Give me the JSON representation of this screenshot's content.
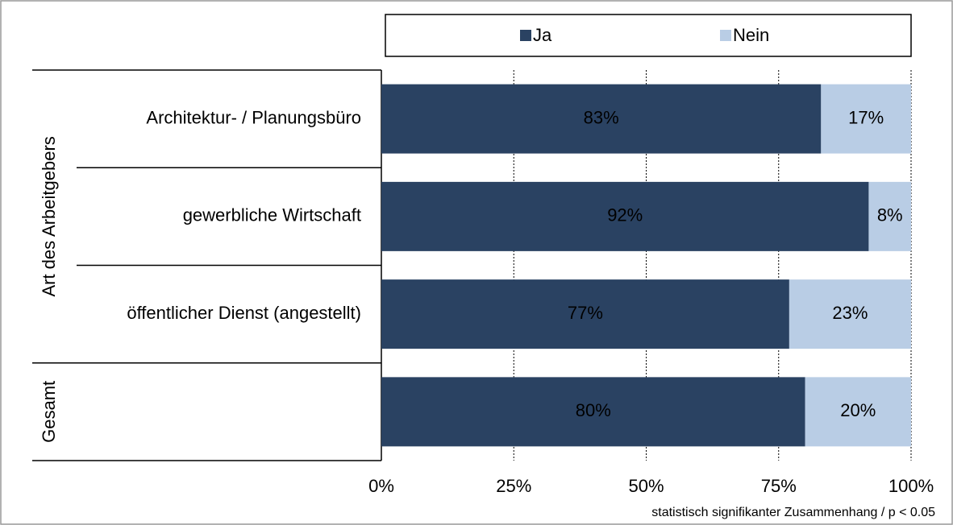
{
  "chart_data": {
    "type": "stacked_barh",
    "categories": [
      "Architektur- / Planungsbüro",
      "gewerbliche Wirtschaft",
      "öffentlicher Dienst (angestellt)",
      null
    ],
    "groups": [
      "Art des Arbeitgebers",
      "Gesamt"
    ],
    "series": [
      {
        "name": "Ja",
        "color": "#2a4262",
        "values": [
          83,
          92,
          77,
          80
        ],
        "value_labels": [
          "83%",
          "92%",
          "77%",
          "80%"
        ]
      },
      {
        "name": "Nein",
        "color": "#b9cde5",
        "values": [
          17,
          8,
          23,
          20
        ],
        "value_labels": [
          "17%",
          "8%",
          "23%",
          "20%"
        ]
      }
    ],
    "xlim": [
      0,
      100
    ],
    "xticks": [
      {
        "value": 0,
        "label": "0%"
      },
      {
        "value": 25,
        "label": "25%"
      },
      {
        "value": 50,
        "label": "50%"
      },
      {
        "value": 75,
        "label": "75%"
      },
      {
        "value": 100,
        "label": "100%"
      }
    ],
    "grid": true,
    "legend": "top",
    "note": "statistisch signifikanter Zusammenhang / p < 0.05"
  }
}
